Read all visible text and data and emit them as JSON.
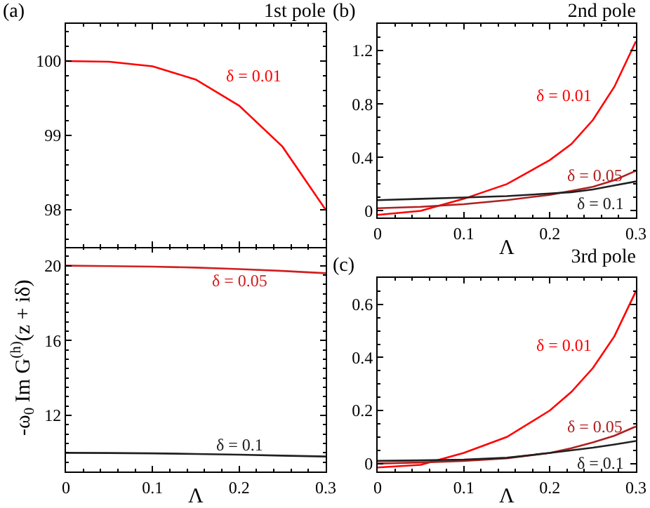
{
  "chart_data": [
    {
      "type": "line",
      "title": "1st pole",
      "annotations": [
        "(a)"
      ],
      "ylabel": "-ω$_{0}$ Im G$^{(h)}$(z + iδ)",
      "x": [
        0,
        0.05,
        0.1,
        0.15,
        0.2,
        0.25,
        0.3
      ],
      "xlim": [
        0,
        0.3
      ],
      "xticks": [
        0,
        0.1,
        0.2,
        0.3
      ],
      "ylim": [
        97.5,
        100.5
      ],
      "yticks": [
        98,
        99,
        100
      ],
      "tick_labels": "y",
      "series": [
        {
          "name": "δ = 0.01",
          "color": "#ff0000",
          "values": [
            100,
            99.99,
            99.93,
            99.75,
            99.4,
            98.85,
            98.0
          ]
        }
      ]
    },
    {
      "type": "line",
      "xlabel": "Λ",
      "x": [
        0,
        0.05,
        0.1,
        0.15,
        0.2,
        0.25,
        0.3
      ],
      "xlim": [
        0,
        0.3
      ],
      "xticks": [
        0,
        0.1,
        0.2,
        0.3
      ],
      "ylim": [
        9,
        21
      ],
      "yticks": [
        12,
        16,
        20
      ],
      "series": [
        {
          "name": "δ = 0.05",
          "color": "#d02020",
          "values": [
            20,
            19.98,
            19.95,
            19.9,
            19.82,
            19.72,
            19.6
          ]
        },
        {
          "name": "δ = 0.1",
          "color": "#202020",
          "values": [
            10,
            9.99,
            9.97,
            9.94,
            9.9,
            9.85,
            9.8
          ]
        }
      ]
    },
    {
      "type": "line",
      "title": "2nd pole",
      "annotations": [
        "(b)"
      ],
      "xlabel": "Λ",
      "x": [
        0,
        0.05,
        0.1,
        0.15,
        0.2,
        0.225,
        0.25,
        0.275,
        0.3
      ],
      "xlim": [
        0,
        0.3
      ],
      "xticks": [
        0,
        0.1,
        0.2,
        0.3
      ],
      "ylim": [
        -0.05,
        1.4
      ],
      "yticks": [
        0,
        0.4,
        0.8,
        1.2
      ],
      "series": [
        {
          "name": "δ = 0.01",
          "color": "#ff0000",
          "values": [
            -0.03,
            0.0,
            0.09,
            0.2,
            0.38,
            0.5,
            0.68,
            0.93,
            1.27
          ]
        },
        {
          "name": "δ = 0.05",
          "color": "#b02020",
          "values": [
            0.02,
            0.03,
            0.05,
            0.08,
            0.12,
            0.15,
            0.18,
            0.23,
            0.3
          ]
        },
        {
          "name": "δ = 0.1",
          "color": "#202020",
          "values": [
            0.08,
            0.09,
            0.1,
            0.11,
            0.13,
            0.14,
            0.16,
            0.19,
            0.22
          ]
        }
      ]
    },
    {
      "type": "line",
      "title": "3rd pole",
      "annotations": [
        "(c)"
      ],
      "xlabel": "Λ",
      "x": [
        0,
        0.05,
        0.1,
        0.15,
        0.2,
        0.225,
        0.25,
        0.275,
        0.3
      ],
      "xlim": [
        0,
        0.3
      ],
      "xticks": [
        0,
        0.1,
        0.2,
        0.3
      ],
      "ylim": [
        -0.03,
        0.7
      ],
      "yticks": [
        0,
        0.2,
        0.4,
        0.6
      ],
      "series": [
        {
          "name": "δ = 0.01",
          "color": "#ff0000",
          "values": [
            -0.015,
            -0.005,
            0.04,
            0.1,
            0.2,
            0.27,
            0.36,
            0.48,
            0.65
          ]
        },
        {
          "name": "δ = 0.05",
          "color": "#b02020",
          "values": [
            0.0,
            0.004,
            0.01,
            0.02,
            0.04,
            0.058,
            0.08,
            0.105,
            0.14
          ]
        },
        {
          "name": "δ = 0.1",
          "color": "#202020",
          "values": [
            0.01,
            0.012,
            0.015,
            0.022,
            0.04,
            0.05,
            0.06,
            0.072,
            0.085
          ]
        }
      ]
    }
  ]
}
